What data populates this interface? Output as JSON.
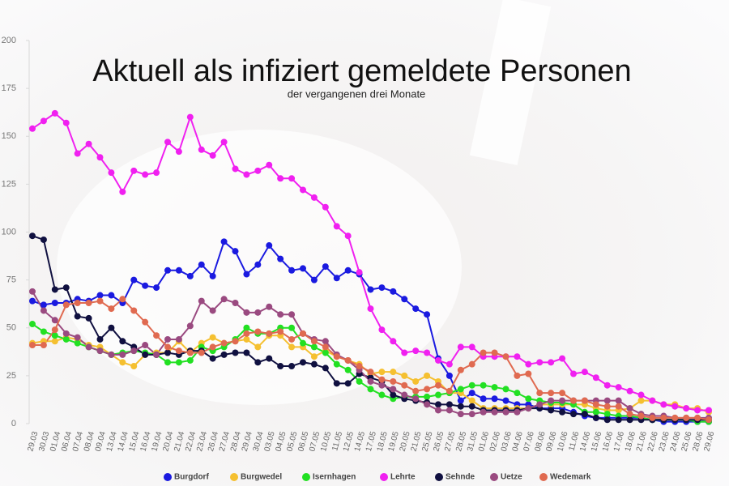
{
  "chart_data": {
    "type": "line",
    "title": "Aktuell als infiziert gemeldete Personen",
    "subtitle": "der vergangenen drei Monate",
    "categories": [
      "29.03",
      "30.03",
      "01.04",
      "06.04",
      "07.04",
      "08.04",
      "09.04",
      "13.04",
      "14.04",
      "15.04",
      "16.04",
      "19.04",
      "20.04",
      "21.04",
      "22.04",
      "23.04",
      "26.04",
      "27.04",
      "28.04",
      "29.04",
      "30.04",
      "03.05",
      "04.05",
      "05.05",
      "06.05",
      "07.05",
      "10.05",
      "11.05",
      "12.05",
      "14.05",
      "17.05",
      "18.05",
      "19.05",
      "20.05",
      "21.05",
      "25.05",
      "26.05",
      "27.05",
      "28.05",
      "31.05",
      "01.06",
      "02.06",
      "03.06",
      "04.06",
      "07.06",
      "08.06",
      "09.06",
      "10.06",
      "11.06",
      "14.06",
      "15.06",
      "16.06",
      "17.06",
      "18.06",
      "21.06",
      "22.06",
      "23.06",
      "24.06",
      "25.06",
      "28.06",
      "29.06"
    ],
    "series": [
      {
        "name": "Burgdorf",
        "color": "#1a1ae0",
        "values": [
          64,
          62,
          63,
          63,
          65,
          64,
          67,
          67,
          63,
          75,
          72,
          71,
          80,
          80,
          77,
          83,
          77,
          95,
          90,
          78,
          83,
          93,
          86,
          80,
          81,
          75,
          82,
          76,
          80,
          78,
          70,
          71,
          69,
          65,
          60,
          57,
          34,
          25,
          12,
          16,
          13,
          13,
          12,
          10,
          10,
          8,
          8,
          8,
          6,
          4,
          3,
          3,
          3,
          3,
          3,
          2,
          1,
          1,
          1,
          1,
          1
        ]
      },
      {
        "name": "Burgwedel",
        "color": "#f5c030",
        "values": [
          42,
          43,
          43,
          45,
          44,
          41,
          40,
          36,
          32,
          30,
          36,
          37,
          37,
          43,
          37,
          42,
          45,
          42,
          43,
          44,
          40,
          46,
          46,
          40,
          40,
          35,
          38,
          35,
          33,
          31,
          26,
          27,
          27,
          25,
          22,
          25,
          22,
          16,
          16,
          12,
          8,
          8,
          8,
          8,
          8,
          10,
          10,
          10,
          10,
          10,
          8,
          7,
          7,
          8,
          12,
          12,
          10,
          10,
          8,
          8,
          6
        ]
      },
      {
        "name": "Isernhagen",
        "color": "#22e022",
        "values": [
          52,
          48,
          46,
          44,
          42,
          40,
          38,
          36,
          37,
          38,
          37,
          36,
          32,
          32,
          33,
          40,
          38,
          40,
          44,
          50,
          47,
          47,
          50,
          50,
          42,
          40,
          37,
          31,
          28,
          22,
          18,
          15,
          13,
          14,
          14,
          14,
          15,
          16,
          18,
          20,
          20,
          19,
          18,
          16,
          13,
          12,
          11,
          11,
          10,
          6,
          6,
          5,
          4,
          4,
          3,
          2,
          2,
          2,
          2,
          1,
          1
        ]
      },
      {
        "name": "Lehrte",
        "color": "#f020f0",
        "values": [
          154,
          158,
          162,
          157,
          141,
          146,
          139,
          131,
          121,
          132,
          130,
          131,
          147,
          142,
          160,
          143,
          140,
          147,
          133,
          130,
          132,
          135,
          128,
          128,
          122,
          118,
          113,
          103,
          98,
          79,
          60,
          49,
          43,
          37,
          38,
          37,
          33,
          31,
          40,
          40,
          35,
          35,
          35,
          35,
          31,
          32,
          32,
          34,
          26,
          27,
          24,
          20,
          19,
          17,
          15,
          12,
          10,
          9,
          8,
          7,
          7
        ]
      },
      {
        "name": "Sehnde",
        "color": "#101040",
        "values": [
          98,
          96,
          70,
          71,
          56,
          55,
          44,
          50,
          43,
          40,
          36,
          36,
          37,
          36,
          38,
          38,
          34,
          36,
          37,
          37,
          32,
          34,
          30,
          30,
          32,
          31,
          29,
          21,
          21,
          26,
          24,
          22,
          15,
          13,
          12,
          11,
          10,
          10,
          9,
          9,
          7,
          7,
          7,
          7,
          8,
          8,
          7,
          6,
          5,
          5,
          3,
          2,
          2,
          2,
          2,
          2,
          2,
          2,
          2,
          2,
          2
        ]
      },
      {
        "name": "Uetze",
        "color": "#9a4a80",
        "values": [
          69,
          59,
          54,
          47,
          45,
          40,
          38,
          36,
          36,
          38,
          41,
          36,
          44,
          44,
          51,
          64,
          59,
          65,
          63,
          58,
          58,
          61,
          57,
          57,
          47,
          44,
          43,
          36,
          33,
          28,
          22,
          20,
          18,
          15,
          13,
          10,
          7,
          7,
          5,
          5,
          6,
          6,
          6,
          6,
          8,
          10,
          12,
          12,
          12,
          12,
          12,
          12,
          12,
          8,
          5,
          4,
          4,
          3,
          3,
          3,
          3
        ]
      },
      {
        "name": "Wedemark",
        "color": "#e06a50",
        "values": [
          41,
          41,
          49,
          62,
          63,
          63,
          64,
          60,
          65,
          59,
          53,
          46,
          40,
          38,
          37,
          37,
          40,
          42,
          43,
          47,
          48,
          47,
          48,
          44,
          47,
          43,
          40,
          35,
          33,
          30,
          27,
          23,
          22,
          20,
          17,
          18,
          20,
          17,
          28,
          31,
          37,
          37,
          35,
          25,
          26,
          16,
          16,
          16,
          12,
          12,
          10,
          9,
          9,
          5,
          4,
          3,
          3,
          3,
          3,
          3,
          2
        ]
      }
    ],
    "ylim": [
      0,
      200
    ],
    "yticks": [
      0,
      25,
      50,
      75,
      100,
      125,
      150,
      175,
      200
    ],
    "grid": false,
    "legend": "bottom"
  }
}
